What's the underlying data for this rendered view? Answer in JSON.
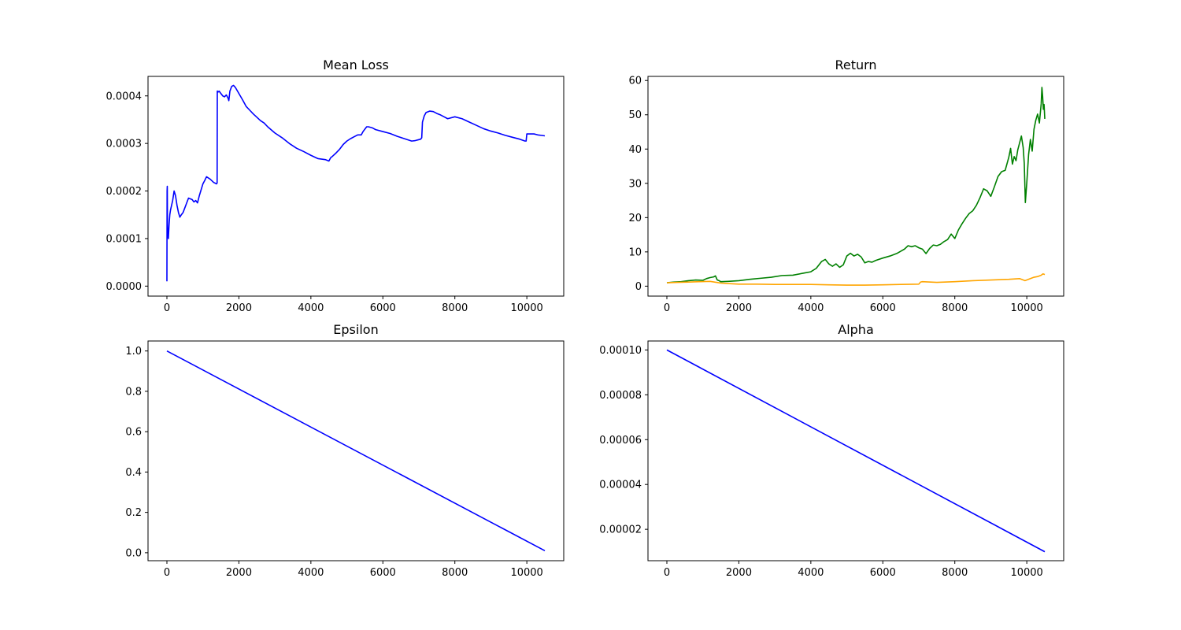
{
  "figure": {
    "background": "#ffffff"
  },
  "chart_data": [
    {
      "type": "line",
      "title": "Mean Loss",
      "xlabel": "",
      "ylabel": "",
      "xlim": [
        -525,
        11025
      ],
      "ylim": [
        -2.1e-05,
        0.000441
      ],
      "xticks": [
        0,
        2000,
        4000,
        6000,
        8000,
        10000
      ],
      "xtick_labels": [
        "0",
        "2000",
        "4000",
        "6000",
        "8000",
        "10000"
      ],
      "yticks": [
        0,
        0.0001,
        0.0002,
        0.0003,
        0.0004
      ],
      "ytick_labels": [
        "0.0000",
        "0.0001",
        "0.0002",
        "0.0003",
        "0.0004"
      ],
      "grid": false,
      "series": [
        {
          "color": "#0000ff",
          "x": [
            0,
            5,
            10,
            15,
            20,
            40,
            60,
            80,
            100,
            130,
            160,
            200,
            240,
            280,
            320,
            360,
            400,
            450,
            500,
            550,
            600,
            700,
            750,
            800,
            850,
            900,
            1000,
            1050,
            1100,
            1200,
            1300,
            1380,
            1395,
            1400,
            1405,
            1420,
            1450,
            1500,
            1550,
            1600,
            1650,
            1700,
            1720,
            1750,
            1800,
            1850,
            1900,
            2000,
            2100,
            2200,
            2300,
            2400,
            2500,
            2600,
            2700,
            2800,
            3000,
            3200,
            3400,
            3600,
            3800,
            4000,
            4200,
            4400,
            4500,
            4550,
            4600,
            4700,
            4800,
            4900,
            5000,
            5100,
            5200,
            5300,
            5400,
            5450,
            5500,
            5550,
            5600,
            5700,
            5800,
            6000,
            6200,
            6400,
            6600,
            6800,
            6900,
            7000,
            7050,
            7080,
            7100,
            7150,
            7200,
            7300,
            7400,
            7500,
            7600,
            7700,
            7800,
            8000,
            8200,
            8400,
            8600,
            8800,
            9000,
            9200,
            9400,
            9600,
            9800,
            9950,
            9980,
            10000,
            10100,
            10200,
            10300,
            10400,
            10500
          ],
          "y": [
            1e-05,
            0.0002,
            0.00021,
            0.00013,
            0.00012,
            0.0001,
            0.00013,
            0.00015,
            0.00016,
            0.00017,
            0.00018,
            0.0002,
            0.00019,
            0.00017,
            0.000155,
            0.000145,
            0.00015,
            0.000155,
            0.000165,
            0.000175,
            0.000185,
            0.000182,
            0.000177,
            0.00018,
            0.000175,
            0.00019,
            0.000215,
            0.000222,
            0.00023,
            0.000225,
            0.000218,
            0.000215,
            0.000217,
            0.00041,
            0.00041,
            0.000408,
            0.00041,
            0.000405,
            0.0004,
            0.000398,
            0.000402,
            0.000395,
            0.00039,
            0.00041,
            0.00042,
            0.000422,
            0.000418,
            0.000405,
            0.000392,
            0.000378,
            0.00037,
            0.000362,
            0.000355,
            0.000348,
            0.000343,
            0.000335,
            0.000322,
            0.000312,
            0.0003,
            0.00029,
            0.000283,
            0.000275,
            0.000268,
            0.000266,
            0.000263,
            0.00027,
            0.000273,
            0.00028,
            0.000288,
            0.000298,
            0.000305,
            0.00031,
            0.000314,
            0.000318,
            0.000318,
            0.000325,
            0.00033,
            0.000335,
            0.000335,
            0.000333,
            0.000329,
            0.000325,
            0.000321,
            0.000315,
            0.00031,
            0.000305,
            0.000306,
            0.000308,
            0.000309,
            0.000312,
            0.000345,
            0.000358,
            0.000365,
            0.000368,
            0.000367,
            0.000363,
            0.00036,
            0.000356,
            0.000352,
            0.000356,
            0.000352,
            0.000345,
            0.000338,
            0.000331,
            0.000326,
            0.000322,
            0.000317,
            0.000313,
            0.000309,
            0.000305,
            0.000305,
            0.00032,
            0.00032,
            0.00032,
            0.000318,
            0.000317,
            0.000316
          ]
        }
      ]
    },
    {
      "type": "line",
      "title": "Return",
      "xlabel": "",
      "ylabel": "",
      "xlim": [
        -525,
        11025
      ],
      "ylim": [
        -2.9,
        61.2
      ],
      "xticks": [
        0,
        2000,
        4000,
        6000,
        8000,
        10000
      ],
      "xtick_labels": [
        "0",
        "2000",
        "4000",
        "6000",
        "8000",
        "10000"
      ],
      "yticks": [
        0,
        10,
        20,
        30,
        40,
        50,
        60
      ],
      "ytick_labels": [
        "0",
        "10",
        "20",
        "30",
        "40",
        "50",
        "60"
      ],
      "grid": false,
      "series": [
        {
          "color": "#008000",
          "x": [
            0,
            200,
            400,
            600,
            800,
            1000,
            1100,
            1200,
            1300,
            1350,
            1400,
            1450,
            1500,
            1700,
            2000,
            2300,
            2600,
            2900,
            3200,
            3500,
            3800,
            4000,
            4150,
            4300,
            4400,
            4500,
            4600,
            4700,
            4800,
            4900,
            5000,
            5100,
            5200,
            5300,
            5400,
            5500,
            5600,
            5700,
            5800,
            6000,
            6200,
            6400,
            6600,
            6700,
            6800,
            6900,
            7000,
            7100,
            7200,
            7300,
            7400,
            7500,
            7600,
            7700,
            7800,
            7900,
            8000,
            8100,
            8200,
            8300,
            8400,
            8500,
            8600,
            8700,
            8800,
            8900,
            9000,
            9100,
            9200,
            9300,
            9400,
            9500,
            9550,
            9600,
            9650,
            9700,
            9750,
            9800,
            9850,
            9900,
            9930,
            9960,
            10000,
            10050,
            10100,
            10150,
            10200,
            10250,
            10300,
            10350,
            10400,
            10420,
            10440,
            10460,
            10480,
            10500
          ],
          "y": [
            1,
            1.2,
            1.3,
            1.6,
            1.8,
            1.7,
            2.2,
            2.5,
            2.7,
            3,
            1.8,
            1.6,
            1.3,
            1.4,
            1.6,
            2,
            2.3,
            2.6,
            3.1,
            3.2,
            3.8,
            4.2,
            5.2,
            7.2,
            7.8,
            6.5,
            5.8,
            6.5,
            5.5,
            6.2,
            8.8,
            9.6,
            8.8,
            9.3,
            8.5,
            6.8,
            7.2,
            7,
            7.5,
            8.2,
            8.8,
            9.6,
            10.8,
            11.8,
            11.5,
            11.8,
            11.2,
            10.8,
            9.5,
            11,
            12,
            11.8,
            12.2,
            13,
            13.6,
            15.2,
            13.9,
            16.4,
            18.2,
            19.8,
            21.2,
            22,
            23.6,
            25.8,
            28.4,
            27.8,
            26.2,
            29,
            32,
            33.4,
            33.8,
            37.6,
            40.2,
            35.6,
            37.8,
            36.6,
            39.8,
            41.8,
            43.8,
            40.4,
            35.8,
            24.4,
            30.2,
            38.4,
            42.8,
            39.4,
            45.8,
            48.4,
            50.2,
            47.6,
            53.2,
            58,
            55.4,
            51.6,
            53,
            48.8
          ]
        },
        {
          "color": "#ffa500",
          "x": [
            0,
            300,
            600,
            900,
            1200,
            1500,
            1800,
            2000,
            2500,
            3000,
            3500,
            4000,
            4500,
            5000,
            5500,
            6000,
            6500,
            7000,
            7050,
            7100,
            7500,
            8000,
            8500,
            9000,
            9500,
            9800,
            9950,
            10100,
            10200,
            10300,
            10400,
            10450,
            10500
          ],
          "y": [
            1,
            1.1,
            1.2,
            1.3,
            1.4,
            0.9,
            0.7,
            0.6,
            0.6,
            0.5,
            0.5,
            0.5,
            0.4,
            0.3,
            0.3,
            0.4,
            0.5,
            0.6,
            1.2,
            1.3,
            1.1,
            1.3,
            1.6,
            1.8,
            2,
            2.2,
            1.6,
            2.2,
            2.6,
            2.8,
            3.2,
            3.6,
            3.4
          ]
        }
      ]
    },
    {
      "type": "line",
      "title": "Epsilon",
      "xlabel": "",
      "ylabel": "",
      "xlim": [
        -525,
        11025
      ],
      "ylim": [
        -0.0395,
        1.0495
      ],
      "xticks": [
        0,
        2000,
        4000,
        6000,
        8000,
        10000
      ],
      "xtick_labels": [
        "0",
        "2000",
        "4000",
        "6000",
        "8000",
        "10000"
      ],
      "yticks": [
        0,
        0.2,
        0.4,
        0.6,
        0.8,
        1.0
      ],
      "ytick_labels": [
        "0.0",
        "0.2",
        "0.4",
        "0.6",
        "0.8",
        "1.0"
      ],
      "grid": false,
      "series": [
        {
          "color": "#0000ff",
          "x": [
            0,
            10500
          ],
          "y": [
            1.0,
            0.01
          ]
        }
      ]
    },
    {
      "type": "line",
      "title": "Alpha",
      "xlabel": "",
      "ylabel": "",
      "xlim": [
        -525,
        11025
      ],
      "ylim": [
        6e-06,
        0.000104
      ],
      "xticks": [
        0,
        2000,
        4000,
        6000,
        8000,
        10000
      ],
      "xtick_labels": [
        "0",
        "2000",
        "4000",
        "6000",
        "8000",
        "10000"
      ],
      "yticks": [
        2e-05,
        4e-05,
        6e-05,
        8e-05,
        0.0001
      ],
      "ytick_labels": [
        "0.00002",
        "0.00004",
        "0.00006",
        "0.00008",
        "0.00010"
      ],
      "grid": false,
      "series": [
        {
          "color": "#0000ff",
          "x": [
            0,
            10500
          ],
          "y": [
            0.0001,
            1e-05
          ]
        }
      ]
    }
  ]
}
